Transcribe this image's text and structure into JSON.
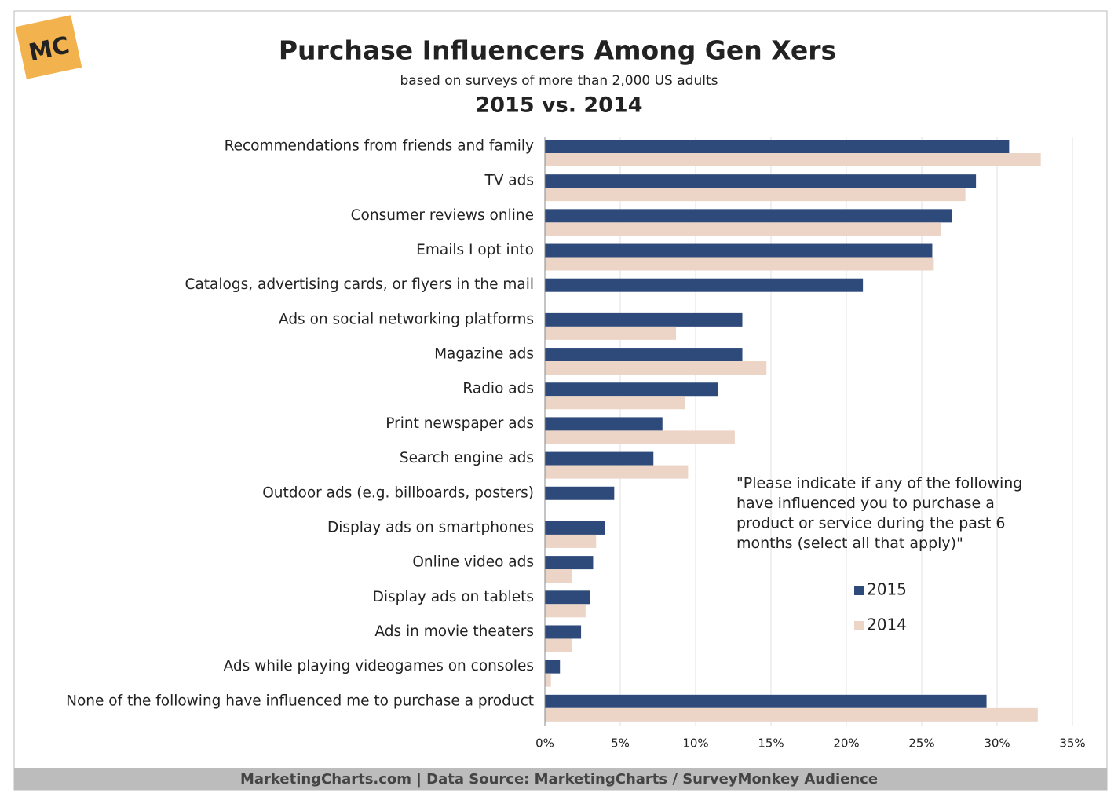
{
  "logo": "MC",
  "chart_data": {
    "type": "bar",
    "orientation": "horizontal",
    "title": "Purchase Influencers Among Gen Xers",
    "subtitle": "based on surveys of more than 2,000 US adults",
    "subtitle2": "2015 vs. 2014",
    "categories": [
      "Recommendations from friends and family",
      "TV ads",
      "Consumer reviews online",
      "Emails I opt into",
      "Catalogs, advertising cards, or flyers in the mail",
      "Ads on social networking platforms",
      "Magazine ads",
      "Radio ads",
      "Print newspaper ads",
      "Search engine ads",
      "Outdoor ads (e.g. billboards, posters)",
      "Display ads on smartphones",
      "Online video ads",
      "Display ads on tablets",
      "Ads in movie theaters",
      "Ads while playing videogames on consoles",
      "None of the following have influenced me to purchase a product"
    ],
    "series": [
      {
        "name": "2015",
        "color": "#2d4a7a",
        "values": [
          30.8,
          28.6,
          27.0,
          25.7,
          21.1,
          13.1,
          13.1,
          11.5,
          7.8,
          7.2,
          4.6,
          4.0,
          3.2,
          3.0,
          2.4,
          1.0,
          29.3
        ]
      },
      {
        "name": "2014",
        "color": "#ecd5c6",
        "values": [
          32.9,
          27.9,
          26.3,
          25.8,
          null,
          8.7,
          14.7,
          9.3,
          12.6,
          9.5,
          null,
          3.4,
          1.8,
          2.7,
          1.8,
          0.4,
          32.7
        ]
      }
    ],
    "xlim": [
      0,
      35
    ],
    "xticks": [
      {
        "value": 0,
        "label": "0%"
      },
      {
        "value": 5,
        "label": "5%"
      },
      {
        "value": 10,
        "label": "10%"
      },
      {
        "value": 15,
        "label": "15%"
      },
      {
        "value": 20,
        "label": "20%"
      },
      {
        "value": 25,
        "label": "25%"
      },
      {
        "value": 30,
        "label": "30%"
      },
      {
        "value": 35,
        "label": "35%"
      }
    ],
    "grid": true,
    "legend": "lower-right",
    "annotation": [
      "\"Please indicate if any of the following",
      "have influenced you to purchase a",
      "product or service during the past 6",
      "months (select all that apply)\""
    ],
    "footer": "MarketingCharts.com | Data Source: MarketingCharts / SurveyMonkey Audience"
  }
}
